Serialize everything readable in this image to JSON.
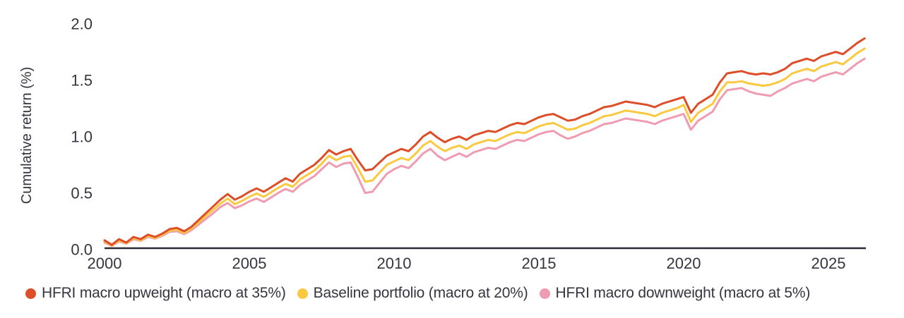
{
  "colors": {
    "background": "#ffffff",
    "text": "#35353f",
    "axis_line": "#2c2c34",
    "upweight": "#dd4d28",
    "baseline": "#fbc93f",
    "downweight": "#ef9cb2"
  },
  "chart_data": {
    "type": "line",
    "title": "",
    "xlabel": "",
    "ylabel": "Cumulative return (%)",
    "ylim": [
      0.0,
      2.0
    ],
    "xlim": [
      2000,
      2026.5
    ],
    "grid": false,
    "legend_position": "bottom",
    "y_ticks": [
      "0.0",
      "0.5",
      "1.0",
      "1.5",
      "2.0"
    ],
    "x_ticks": [
      2000,
      2005,
      2010,
      2015,
      2020,
      2025
    ],
    "x": [
      2000.0,
      2000.25,
      2000.5,
      2000.75,
      2001.0,
      2001.25,
      2001.5,
      2001.75,
      2002.0,
      2002.25,
      2002.5,
      2002.75,
      2003.0,
      2003.25,
      2003.5,
      2003.75,
      2004.0,
      2004.25,
      2004.5,
      2004.75,
      2005.0,
      2005.25,
      2005.5,
      2005.75,
      2006.0,
      2006.25,
      2006.5,
      2006.75,
      2007.0,
      2007.25,
      2007.5,
      2007.75,
      2008.0,
      2008.25,
      2008.5,
      2008.75,
      2009.0,
      2009.25,
      2009.5,
      2009.75,
      2010.0,
      2010.25,
      2010.5,
      2010.75,
      2011.0,
      2011.25,
      2011.5,
      2011.75,
      2012.0,
      2012.25,
      2012.5,
      2012.75,
      2013.0,
      2013.25,
      2013.5,
      2013.75,
      2014.0,
      2014.25,
      2014.5,
      2014.75,
      2015.0,
      2015.25,
      2015.5,
      2015.75,
      2016.0,
      2016.25,
      2016.5,
      2016.75,
      2017.0,
      2017.25,
      2017.5,
      2017.75,
      2018.0,
      2018.25,
      2018.5,
      2018.75,
      2019.0,
      2019.25,
      2019.5,
      2019.75,
      2020.0,
      2020.25,
      2020.5,
      2020.75,
      2021.0,
      2021.25,
      2021.5,
      2021.75,
      2022.0,
      2022.25,
      2022.5,
      2022.75,
      2023.0,
      2023.25,
      2023.5,
      2023.75,
      2024.0,
      2024.25,
      2024.5,
      2024.75,
      2025.0,
      2025.25,
      2025.5,
      2025.75,
      2026.0,
      2026.25
    ],
    "series": [
      {
        "name": "HFRI macro upweight (macro at 35%)",
        "color": "#dd4d28",
        "values": [
          0.07,
          0.03,
          0.08,
          0.05,
          0.1,
          0.08,
          0.12,
          0.1,
          0.13,
          0.17,
          0.18,
          0.15,
          0.19,
          0.25,
          0.31,
          0.37,
          0.43,
          0.48,
          0.43,
          0.46,
          0.5,
          0.53,
          0.5,
          0.54,
          0.58,
          0.62,
          0.59,
          0.66,
          0.7,
          0.74,
          0.8,
          0.87,
          0.83,
          0.86,
          0.88,
          0.78,
          0.69,
          0.7,
          0.76,
          0.82,
          0.85,
          0.88,
          0.86,
          0.92,
          0.99,
          1.03,
          0.98,
          0.94,
          0.97,
          0.99,
          0.96,
          1.0,
          1.02,
          1.04,
          1.03,
          1.06,
          1.09,
          1.11,
          1.1,
          1.13,
          1.16,
          1.18,
          1.19,
          1.16,
          1.13,
          1.14,
          1.17,
          1.19,
          1.22,
          1.25,
          1.26,
          1.28,
          1.3,
          1.29,
          1.28,
          1.27,
          1.25,
          1.28,
          1.3,
          1.32,
          1.34,
          1.2,
          1.28,
          1.32,
          1.36,
          1.47,
          1.55,
          1.56,
          1.57,
          1.55,
          1.54,
          1.55,
          1.54,
          1.56,
          1.59,
          1.64,
          1.66,
          1.68,
          1.66,
          1.7,
          1.72,
          1.74,
          1.72,
          1.77,
          1.82,
          1.86
        ]
      },
      {
        "name": "Baseline portfolio (macro at 20%)",
        "color": "#fbc93f",
        "values": [
          0.06,
          0.025,
          0.07,
          0.045,
          0.09,
          0.07,
          0.11,
          0.09,
          0.12,
          0.155,
          0.165,
          0.135,
          0.175,
          0.23,
          0.285,
          0.34,
          0.395,
          0.44,
          0.39,
          0.42,
          0.455,
          0.485,
          0.455,
          0.495,
          0.535,
          0.57,
          0.545,
          0.61,
          0.65,
          0.69,
          0.75,
          0.82,
          0.78,
          0.81,
          0.82,
          0.71,
          0.59,
          0.6,
          0.67,
          0.74,
          0.77,
          0.8,
          0.78,
          0.84,
          0.91,
          0.95,
          0.9,
          0.86,
          0.89,
          0.91,
          0.88,
          0.92,
          0.94,
          0.96,
          0.95,
          0.98,
          1.01,
          1.03,
          1.02,
          1.05,
          1.08,
          1.1,
          1.11,
          1.08,
          1.05,
          1.06,
          1.09,
          1.11,
          1.14,
          1.17,
          1.18,
          1.2,
          1.22,
          1.21,
          1.2,
          1.19,
          1.17,
          1.2,
          1.22,
          1.24,
          1.27,
          1.12,
          1.2,
          1.24,
          1.28,
          1.39,
          1.47,
          1.47,
          1.48,
          1.46,
          1.45,
          1.44,
          1.45,
          1.47,
          1.5,
          1.55,
          1.57,
          1.59,
          1.57,
          1.61,
          1.63,
          1.65,
          1.63,
          1.68,
          1.73,
          1.77
        ]
      },
      {
        "name": "HFRI macro downweight (macro at 5%)",
        "color": "#ef9cb2",
        "values": [
          0.05,
          0.02,
          0.06,
          0.04,
          0.08,
          0.065,
          0.1,
          0.085,
          0.11,
          0.145,
          0.15,
          0.125,
          0.16,
          0.21,
          0.26,
          0.31,
          0.365,
          0.4,
          0.355,
          0.38,
          0.415,
          0.44,
          0.41,
          0.45,
          0.49,
          0.525,
          0.5,
          0.56,
          0.6,
          0.64,
          0.7,
          0.76,
          0.72,
          0.75,
          0.76,
          0.63,
          0.49,
          0.5,
          0.58,
          0.66,
          0.7,
          0.73,
          0.71,
          0.77,
          0.84,
          0.88,
          0.82,
          0.78,
          0.81,
          0.84,
          0.81,
          0.85,
          0.87,
          0.89,
          0.88,
          0.91,
          0.94,
          0.96,
          0.95,
          0.98,
          1.01,
          1.03,
          1.04,
          1.0,
          0.97,
          0.99,
          1.02,
          1.04,
          1.07,
          1.1,
          1.11,
          1.13,
          1.15,
          1.14,
          1.13,
          1.12,
          1.1,
          1.13,
          1.15,
          1.17,
          1.19,
          1.05,
          1.13,
          1.17,
          1.21,
          1.32,
          1.4,
          1.41,
          1.42,
          1.39,
          1.37,
          1.36,
          1.35,
          1.39,
          1.42,
          1.46,
          1.48,
          1.5,
          1.48,
          1.52,
          1.54,
          1.56,
          1.54,
          1.59,
          1.64,
          1.68
        ]
      }
    ]
  }
}
